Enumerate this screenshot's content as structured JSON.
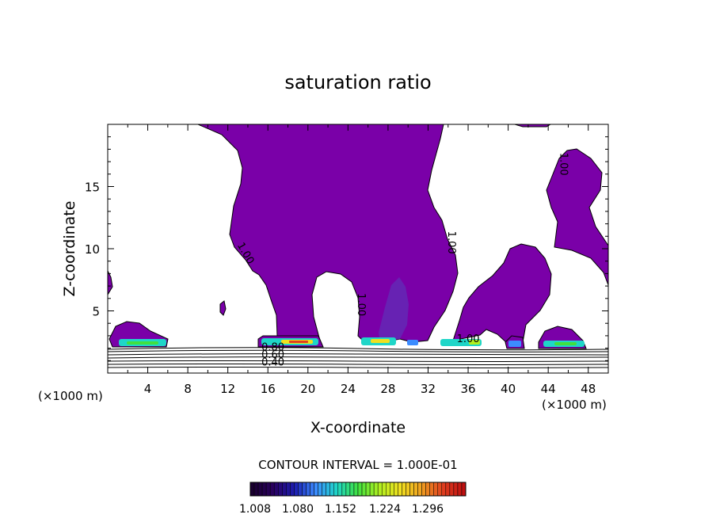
{
  "chart_data": {
    "type": "contour",
    "title": "saturation ratio",
    "xlabel": "X-coordinate",
    "ylabel": "Z-coordinate",
    "x_unit_left": "(×1000 m)",
    "x_unit_right": "(×1000 m)",
    "xlim": [
      0,
      50
    ],
    "ylim": [
      0,
      20
    ],
    "x_ticks": [
      4,
      8,
      12,
      16,
      20,
      24,
      28,
      32,
      36,
      40,
      44,
      48
    ],
    "y_ticks": [
      5,
      10,
      15
    ],
    "contour_interval_text": "CONTOUR INTERVAL = 1.000E-01",
    "colorbar": {
      "ticks": [
        "1.008",
        "1.080",
        "1.152",
        "1.224",
        "1.296"
      ],
      "colors": [
        "#1a0030",
        "#2a0060",
        "#1c1cb0",
        "#3c8cff",
        "#1fd6c8",
        "#40e040",
        "#b0f020",
        "#f0e020",
        "#f0a020",
        "#e04020",
        "#c01010"
      ]
    },
    "fill_color": "#7a00a8",
    "contour_labels": [
      {
        "text": "1.00",
        "x": 13.5,
        "z": 9.5
      },
      {
        "text": "1.00",
        "x": 25.0,
        "z": 5.5
      },
      {
        "text": "1.00",
        "x": 34.0,
        "z": 10.5
      },
      {
        "text": "1.00",
        "x": 45.2,
        "z": 16.8
      },
      {
        "text": "1.00",
        "x": 36.0,
        "z": 2.5
      },
      {
        "text": "0.80",
        "x": 16.5,
        "z": 1.8
      },
      {
        "text": "0.60",
        "x": 16.5,
        "z": 1.2
      },
      {
        "text": "0.40",
        "x": 16.5,
        "z": 0.6
      }
    ]
  }
}
